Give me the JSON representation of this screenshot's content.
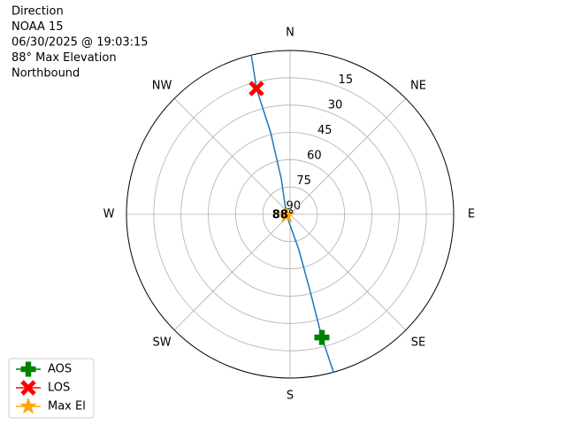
{
  "chart_data": {
    "type": "polar",
    "title_lines": [
      "Direction",
      "NOAA 15",
      "06/30/2025 @ 19:03:15",
      "88° Max Elevation",
      "Northbound"
    ],
    "theta_zero": "N",
    "theta_direction": "clockwise",
    "thetaticks": [
      {
        "value": 0,
        "label": "N"
      },
      {
        "value": 45,
        "label": "NE"
      },
      {
        "value": 90,
        "label": "E"
      },
      {
        "value": 135,
        "label": "SE"
      },
      {
        "value": 180,
        "label": "S"
      },
      {
        "value": 225,
        "label": "SW"
      },
      {
        "value": 270,
        "label": "W"
      },
      {
        "value": 315,
        "label": "NW"
      }
    ],
    "rlim": [
      90,
      0
    ],
    "rticks": [
      15,
      30,
      45,
      60,
      75,
      90
    ],
    "grid": true,
    "track": {
      "color": "#1f77b4",
      "az": [
        346.3,
        345,
        346.6,
        346,
        255,
        166,
        165.4,
        165.5,
        164.6
      ],
      "el": [
        0,
        18.5,
        44,
        70,
        88,
        70,
        45.7,
        20.1,
        0
      ]
    },
    "series": [
      {
        "name": "AOS",
        "color": "#008000",
        "marker": "P",
        "az": [
          165.5
        ],
        "el": [
          20.1
        ]
      },
      {
        "name": "LOS",
        "color": "#ff0000",
        "marker": "X",
        "az": [
          345
        ],
        "el": [
          18.5
        ]
      },
      {
        "name": "Max El",
        "color": "#ffa500",
        "marker": "*",
        "az": [
          255
        ],
        "el": [
          88
        ]
      }
    ],
    "annotation": "88°",
    "legend": "lower left"
  }
}
